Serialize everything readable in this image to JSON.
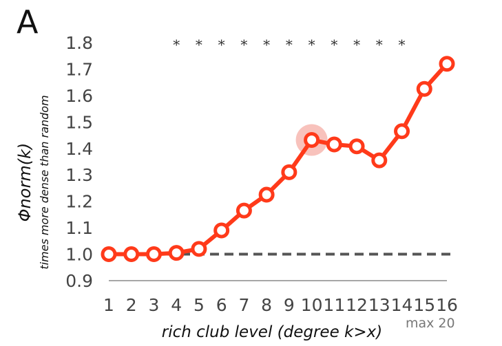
{
  "panel_label": "A",
  "chart_data": {
    "type": "line",
    "ylabel": "Φnorm(k)",
    "ylabel_sub": "times more dense than random",
    "xlabel": "rich club level (degree k>x)",
    "note": "max 20",
    "x": [
      1,
      2,
      3,
      4,
      5,
      6,
      7,
      8,
      9,
      10,
      11,
      12,
      13,
      14,
      15,
      16
    ],
    "x_tick_labels": [
      "1",
      "2",
      "3",
      "4",
      "5",
      "6",
      "7",
      "8",
      "9",
      "10",
      "11",
      "12",
      "13",
      "14",
      "15",
      "16"
    ],
    "series": [
      {
        "values": [
          1.0,
          1.0,
          1.0,
          1.005,
          1.02,
          1.09,
          1.165,
          1.225,
          1.31,
          1.432,
          1.415,
          1.408,
          1.355,
          1.465,
          1.625,
          1.72
        ]
      }
    ],
    "y_ticks": [
      0.9,
      1.0,
      1.1,
      1.2,
      1.3,
      1.4,
      1.5,
      1.6,
      1.7,
      1.8
    ],
    "y_tick_labels": [
      "0.9",
      "1.0",
      "1.1",
      "1.2",
      "1.3",
      "1.4",
      "1.5",
      "1.6",
      "1.7",
      "1.8"
    ],
    "ylim": [
      0.9,
      1.8
    ],
    "xlim": [
      1,
      16
    ],
    "reference_line": {
      "y": 1.0,
      "style": "dashed"
    },
    "significance_marker": "*",
    "significant_levels": [
      4,
      5,
      6,
      7,
      8,
      9,
      10,
      11,
      12,
      13,
      14
    ],
    "highlighted_level": 10,
    "grid": false,
    "colors": {
      "line": "#ff3a1a",
      "marker_fill": "#ffffff",
      "highlight": "#f7b7b0",
      "reference": "#555555",
      "axis": "#888888"
    }
  }
}
